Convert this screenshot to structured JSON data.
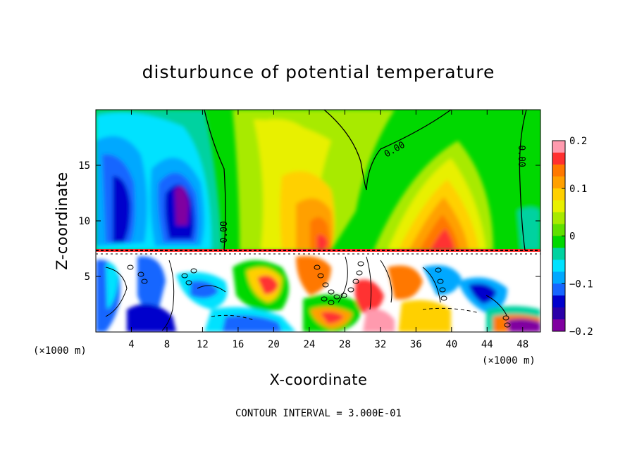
{
  "chart_data": {
    "type": "heatmap",
    "title": "disturbunce of potential temperature",
    "xlabel": "X-coordinate",
    "ylabel": "Z-coordinate",
    "x_unit": "(×1000 m)",
    "y_unit": "(×1000 m)",
    "xlim": [
      0,
      50
    ],
    "ylim": [
      0,
      20
    ],
    "x_ticks": [
      4,
      8,
      12,
      16,
      20,
      24,
      28,
      32,
      36,
      40,
      44,
      48
    ],
    "y_ticks": [
      5,
      10,
      15
    ],
    "colorbar": {
      "range": [
        -0.2,
        0.2
      ],
      "tick_values": [
        0.2,
        0.1,
        0,
        -0.1,
        -0.2
      ],
      "tick_labels": [
        "0.2",
        "0.1",
        "0",
        "−0.1",
        "−0.2"
      ],
      "colors": [
        "#ff9aae",
        "#ff3030",
        "#ff7800",
        "#ffa000",
        "#ffd000",
        "#e8f000",
        "#a8ea00",
        "#60e000",
        "#00d800",
        "#00d2a0",
        "#00e2ff",
        "#00a8ff",
        "#1666ff",
        "#0000cc",
        "#2a00a8",
        "#8000a0"
      ]
    },
    "contour_labels": [
      "0.00",
      "0.00",
      "0.00"
    ],
    "contour_interval_text": "CONTOUR INTERVAL = 3.000E-01"
  }
}
